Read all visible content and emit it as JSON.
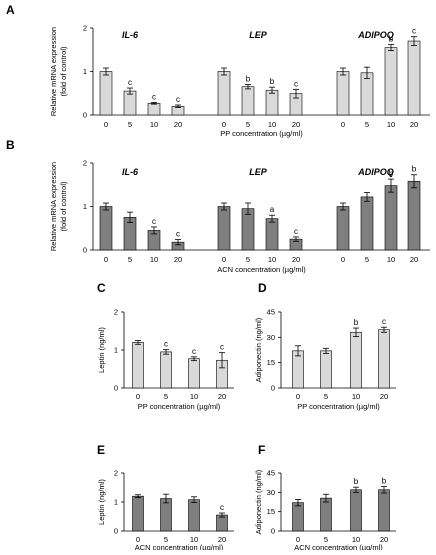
{
  "figure": {
    "panels": [
      {
        "letter": "A",
        "letter_pos": "top-left"
      },
      {
        "letter": "B",
        "letter_pos": "top-left"
      },
      {
        "letter": "C",
        "letter_pos": "top-left"
      },
      {
        "letter": "D",
        "letter_pos": "top-left"
      },
      {
        "letter": "E",
        "letter_pos": "top-left"
      },
      {
        "letter": "F",
        "letter_pos": "top-left"
      }
    ]
  },
  "chart_data": [
    {
      "id": "A",
      "type": "bar",
      "panel_label": "A",
      "bar_color": "#d9d9d9",
      "ylabel": "Relative mRNA expression (fold of control)",
      "ylabel_lines": [
        "Relative mRNA expression",
        "(fold of control)"
      ],
      "xlabel": "PP concentration (µg/ml)",
      "ylim": [
        0,
        2
      ],
      "yticks": [
        0,
        1,
        2
      ],
      "groups": [
        {
          "name": "IL-6",
          "categories": [
            "0",
            "5",
            "10",
            "20"
          ],
          "values": [
            1.0,
            0.55,
            0.27,
            0.2
          ],
          "errors": [
            0.08,
            0.07,
            0.02,
            0.03
          ],
          "sig": [
            "",
            "c",
            "c",
            "c"
          ]
        },
        {
          "name": "LEP",
          "categories": [
            "0",
            "5",
            "10",
            "20"
          ],
          "values": [
            1.0,
            0.65,
            0.57,
            0.49
          ],
          "errors": [
            0.08,
            0.05,
            0.07,
            0.1
          ],
          "sig": [
            "",
            "b",
            "b",
            "c"
          ]
        },
        {
          "name": "ADIPOQ",
          "categories": [
            "0",
            "5",
            "10",
            "20"
          ],
          "values": [
            1.0,
            0.97,
            1.55,
            1.7
          ],
          "errors": [
            0.08,
            0.13,
            0.07,
            0.1
          ],
          "sig": [
            "",
            "",
            "b",
            "c"
          ]
        }
      ]
    },
    {
      "id": "B",
      "type": "bar",
      "panel_label": "B",
      "bar_color": "#7f7f7f",
      "ylabel": "Relative mRNA expression (fold of control)",
      "ylabel_lines": [
        "Relative mRNA expression",
        "(fold of control)"
      ],
      "xlabel": "ACN concentration (µg/ml)",
      "ylim": [
        0,
        2
      ],
      "yticks": [
        0,
        1,
        2
      ],
      "groups": [
        {
          "name": "IL-6",
          "categories": [
            "0",
            "5",
            "10",
            "20"
          ],
          "values": [
            1.0,
            0.75,
            0.45,
            0.18
          ],
          "errors": [
            0.08,
            0.12,
            0.08,
            0.06
          ],
          "sig": [
            "",
            "",
            "c",
            "c"
          ]
        },
        {
          "name": "LEP",
          "categories": [
            "0",
            "5",
            "10",
            "20"
          ],
          "values": [
            1.0,
            0.95,
            0.72,
            0.25
          ],
          "errors": [
            0.08,
            0.13,
            0.08,
            0.05
          ],
          "sig": [
            "",
            "",
            "a",
            "c"
          ]
        },
        {
          "name": "ADIPOQ",
          "categories": [
            "0",
            "5",
            "10",
            "20"
          ],
          "values": [
            1.0,
            1.22,
            1.48,
            1.58
          ],
          "errors": [
            0.08,
            0.1,
            0.15,
            0.15
          ],
          "sig": [
            "",
            "",
            "b",
            "b"
          ]
        }
      ]
    },
    {
      "id": "C",
      "type": "bar",
      "panel_label": "C",
      "bar_color": "#d9d9d9",
      "ylabel": "Leptin (ng/ml)",
      "xlabel": "PP concentration (µg/ml)",
      "ylim": [
        0,
        2
      ],
      "yticks": [
        0,
        1,
        2
      ],
      "categories": [
        "0",
        "5",
        "10",
        "20"
      ],
      "values": [
        1.2,
        0.95,
        0.77,
        0.73
      ],
      "errors": [
        0.05,
        0.06,
        0.05,
        0.2
      ],
      "sig": [
        "",
        "c",
        "c",
        "c"
      ]
    },
    {
      "id": "D",
      "type": "bar",
      "panel_label": "D",
      "bar_color": "#d9d9d9",
      "ylabel": "Adiponectin (ng/ml)",
      "xlabel": "PP concentration (µg/ml)",
      "ylim": [
        0,
        45
      ],
      "yticks": [
        0,
        15,
        30,
        45
      ],
      "categories": [
        "0",
        "5",
        "10",
        "20"
      ],
      "values": [
        22,
        22,
        33,
        34.5
      ],
      "errors": [
        3,
        1.5,
        2.5,
        1.5
      ],
      "sig": [
        "",
        "",
        "b",
        "c"
      ]
    },
    {
      "id": "E",
      "type": "bar",
      "panel_label": "E",
      "bar_color": "#7f7f7f",
      "ylabel": "Leptin (ng/ml)",
      "xlabel": "ACN concentration (µg/ml)",
      "ylim": [
        0,
        2
      ],
      "yticks": [
        0,
        1,
        2
      ],
      "categories": [
        "0",
        "5",
        "10",
        "20"
      ],
      "values": [
        1.2,
        1.12,
        1.08,
        0.55
      ],
      "errors": [
        0.05,
        0.15,
        0.1,
        0.07
      ],
      "sig": [
        "",
        "",
        "",
        "c"
      ]
    },
    {
      "id": "F",
      "type": "bar",
      "panel_label": "F",
      "bar_color": "#7f7f7f",
      "ylabel": "Adiponectin (ng/ml)",
      "xlabel": "ACN concentration (µg/ml)",
      "ylim": [
        0,
        45
      ],
      "yticks": [
        0,
        15,
        30,
        45
      ],
      "categories": [
        "0",
        "5",
        "10",
        "20"
      ],
      "values": [
        22,
        25.5,
        32,
        32
      ],
      "errors": [
        2.5,
        3,
        2,
        2.5
      ],
      "sig": [
        "",
        "",
        "b",
        "b"
      ]
    }
  ]
}
